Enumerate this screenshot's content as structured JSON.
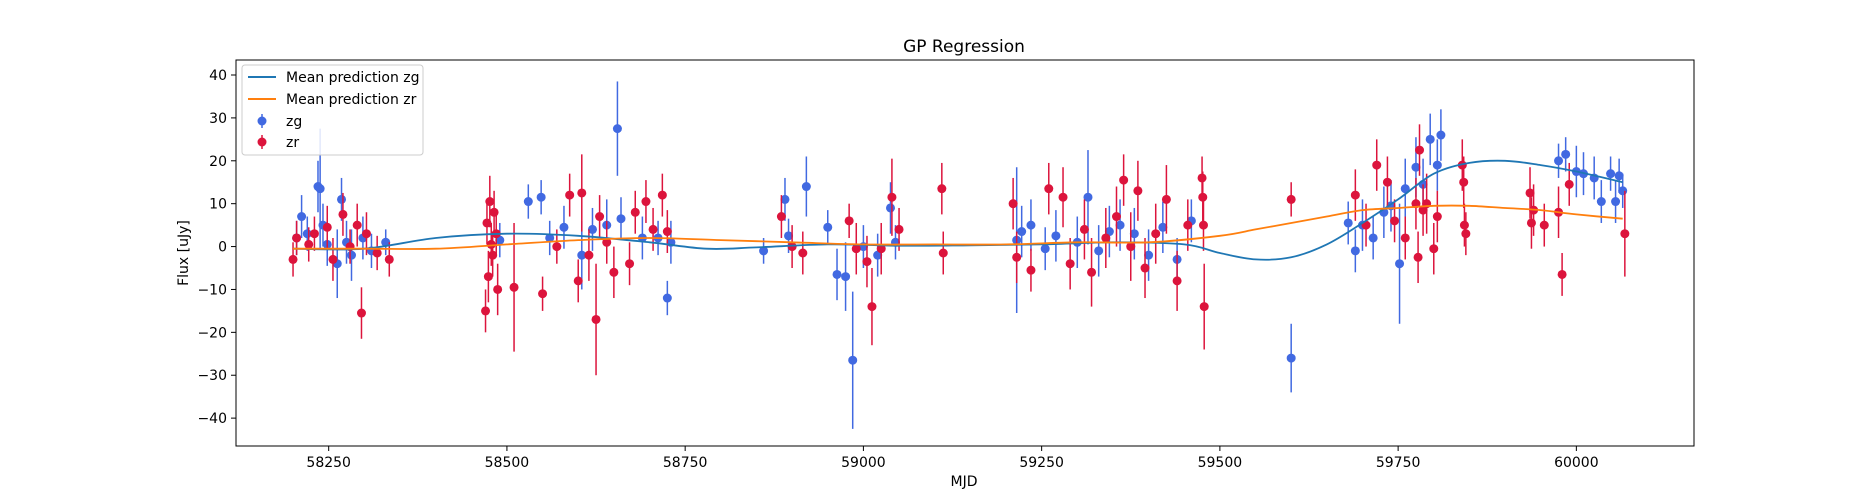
{
  "chart_data": {
    "type": "scatter",
    "title": "GP Regression",
    "xlabel": "MJD",
    "ylabel": "Flux [uJy]",
    "xlim": [
      58120,
      60165
    ],
    "ylim": [
      -46.5,
      43.5
    ],
    "xticks": [
      58250,
      58500,
      58750,
      59000,
      59250,
      59500,
      59750,
      60000
    ],
    "yticks": [
      -40,
      -30,
      -20,
      -10,
      0,
      10,
      20,
      30,
      40
    ],
    "grid": false,
    "legend_position": "top-left",
    "legend": [
      {
        "label": "Mean prediction zg",
        "kind": "line",
        "color": "#1f77b4"
      },
      {
        "label": "Mean prediction zr",
        "kind": "line",
        "color": "#ff7f0e"
      },
      {
        "label": "zg",
        "kind": "errorbar",
        "color": "#4169e1"
      },
      {
        "label": "zr",
        "kind": "errorbar",
        "color": "#dc143c"
      }
    ],
    "lines": [
      {
        "name": "Mean prediction zg",
        "color": "#1f77b4",
        "x": [
          58200,
          58300,
          58400,
          58500,
          58600,
          58700,
          58780,
          58850,
          58950,
          59050,
          59150,
          59250,
          59350,
          59450,
          59500,
          59550,
          59600,
          59650,
          59700,
          59750,
          59800,
          59850,
          59900,
          59950,
          60000,
          60065
        ],
        "y": [
          -0.5,
          -0.5,
          2,
          3,
          2.5,
          1,
          -0.5,
          -0.2,
          0.5,
          0.2,
          0.3,
          0.5,
          1,
          0.5,
          -1.5,
          -3,
          -2.5,
          0.5,
          5.5,
          11,
          17,
          19.5,
          20,
          19,
          17.5,
          15
        ]
      },
      {
        "name": "Mean prediction zr",
        "color": "#ff7f0e",
        "x": [
          58200,
          58300,
          58400,
          58500,
          58600,
          58700,
          58800,
          58900,
          59000,
          59100,
          59200,
          59300,
          59400,
          59500,
          59550,
          59600,
          59650,
          59700,
          59750,
          59800,
          59850,
          59900,
          59950,
          60000,
          60065
        ],
        "y": [
          -0.5,
          -0.5,
          -0.5,
          0.5,
          1.5,
          2,
          1.5,
          1,
          0.5,
          0.5,
          0.5,
          1,
          1,
          2.5,
          4,
          5.5,
          7,
          8.5,
          9,
          9.5,
          9.5,
          9,
          8.5,
          7.5,
          6.5
        ]
      }
    ],
    "series": [
      {
        "name": "zg",
        "color": "#4169e1",
        "points": [
          {
            "x": 58205,
            "y": 2,
            "err": 4
          },
          {
            "x": 58212,
            "y": 7,
            "err": 5
          },
          {
            "x": 58220,
            "y": 3,
            "err": 4
          },
          {
            "x": 58235,
            "y": 14,
            "err": 6
          },
          {
            "x": 58238,
            "y": 13.5,
            "err": 14
          },
          {
            "x": 58242,
            "y": 5,
            "err": 5
          },
          {
            "x": 58248,
            "y": 0.5,
            "err": 5
          },
          {
            "x": 58262,
            "y": -4,
            "err": 8
          },
          {
            "x": 58268,
            "y": 11,
            "err": 5
          },
          {
            "x": 58275,
            "y": 1,
            "err": 5
          },
          {
            "x": 58282,
            "y": -2,
            "err": 6
          },
          {
            "x": 58298,
            "y": 2,
            "err": 5
          },
          {
            "x": 58310,
            "y": -1,
            "err": 4
          },
          {
            "x": 58330,
            "y": 1,
            "err": 3
          },
          {
            "x": 58490,
            "y": 1.5,
            "err": 4
          },
          {
            "x": 58530,
            "y": 10.5,
            "err": 4
          },
          {
            "x": 58548,
            "y": 11.5,
            "err": 4
          },
          {
            "x": 58560,
            "y": 2,
            "err": 4
          },
          {
            "x": 58580,
            "y": 4.5,
            "err": 5
          },
          {
            "x": 58605,
            "y": -2,
            "err": 8
          },
          {
            "x": 58620,
            "y": 4,
            "err": 5
          },
          {
            "x": 58640,
            "y": 5,
            "err": 6
          },
          {
            "x": 58655,
            "y": 27.5,
            "err": 11
          },
          {
            "x": 58660,
            "y": 6.5,
            "err": 5
          },
          {
            "x": 58690,
            "y": 2,
            "err": 5
          },
          {
            "x": 58712,
            "y": 2,
            "err": 4
          },
          {
            "x": 58725,
            "y": -12,
            "err": 4
          },
          {
            "x": 58730,
            "y": 1,
            "err": 5
          },
          {
            "x": 58860,
            "y": -1,
            "err": 3
          },
          {
            "x": 58890,
            "y": 11,
            "err": 5
          },
          {
            "x": 58895,
            "y": 2.5,
            "err": 4
          },
          {
            "x": 58920,
            "y": 14,
            "err": 7
          },
          {
            "x": 58950,
            "y": 4.5,
            "err": 4
          },
          {
            "x": 58963,
            "y": -6.5,
            "err": 6
          },
          {
            "x": 58975,
            "y": -7,
            "err": 8
          },
          {
            "x": 58985,
            "y": -26.5,
            "err": 16
          },
          {
            "x": 59000,
            "y": 0,
            "err": 5
          },
          {
            "x": 59020,
            "y": -2,
            "err": 5
          },
          {
            "x": 59038,
            "y": 9,
            "err": 6
          },
          {
            "x": 59045,
            "y": 1,
            "err": 4
          },
          {
            "x": 59215,
            "y": 1.5,
            "err": 17
          },
          {
            "x": 59222,
            "y": 3.5,
            "err": 6
          },
          {
            "x": 59235,
            "y": 5,
            "err": 6
          },
          {
            "x": 59255,
            "y": -0.5,
            "err": 5
          },
          {
            "x": 59270,
            "y": 2.5,
            "err": 6
          },
          {
            "x": 59300,
            "y": 1,
            "err": 6
          },
          {
            "x": 59315,
            "y": 11.5,
            "err": 11
          },
          {
            "x": 59330,
            "y": -1,
            "err": 6
          },
          {
            "x": 59345,
            "y": 3.5,
            "err": 6
          },
          {
            "x": 59360,
            "y": 5,
            "err": 6
          },
          {
            "x": 59380,
            "y": 3,
            "err": 6
          },
          {
            "x": 59400,
            "y": -2,
            "err": 6
          },
          {
            "x": 59420,
            "y": 4.5,
            "err": 6
          },
          {
            "x": 59440,
            "y": -3,
            "err": 5
          },
          {
            "x": 59460,
            "y": 6,
            "err": 5
          },
          {
            "x": 59600,
            "y": -26,
            "err": 8
          },
          {
            "x": 59680,
            "y": 5.5,
            "err": 5
          },
          {
            "x": 59690,
            "y": -1,
            "err": 5
          },
          {
            "x": 59700,
            "y": 5,
            "err": 6
          },
          {
            "x": 59715,
            "y": 2,
            "err": 5
          },
          {
            "x": 59730,
            "y": 8,
            "err": 6
          },
          {
            "x": 59740,
            "y": 9.5,
            "err": 6
          },
          {
            "x": 59752,
            "y": -4,
            "err": 14
          },
          {
            "x": 59760,
            "y": 13.5,
            "err": 7
          },
          {
            "x": 59775,
            "y": 18.5,
            "err": 7
          },
          {
            "x": 59785,
            "y": 14.5,
            "err": 6
          },
          {
            "x": 59795,
            "y": 25,
            "err": 6
          },
          {
            "x": 59805,
            "y": 19,
            "err": 6
          },
          {
            "x": 59810,
            "y": 26,
            "err": 6
          },
          {
            "x": 59975,
            "y": 20,
            "err": 4
          },
          {
            "x": 59985,
            "y": 21.5,
            "err": 4
          },
          {
            "x": 60000,
            "y": 17.5,
            "err": 6
          },
          {
            "x": 60010,
            "y": 17,
            "err": 5
          },
          {
            "x": 60025,
            "y": 16,
            "err": 5
          },
          {
            "x": 60035,
            "y": 10.5,
            "err": 5
          },
          {
            "x": 60048,
            "y": 17,
            "err": 4
          },
          {
            "x": 60055,
            "y": 10.5,
            "err": 5
          },
          {
            "x": 60060,
            "y": 16.5,
            "err": 4
          },
          {
            "x": 60065,
            "y": 13,
            "err": 4
          }
        ]
      },
      {
        "name": "zr",
        "color": "#dc143c",
        "points": [
          {
            "x": 58200,
            "y": -3,
            "err": 4
          },
          {
            "x": 58205,
            "y": 2,
            "err": 4
          },
          {
            "x": 58222,
            "y": 0.5,
            "err": 4
          },
          {
            "x": 58230,
            "y": 3,
            "err": 4
          },
          {
            "x": 58248,
            "y": 4.5,
            "err": 5
          },
          {
            "x": 58256,
            "y": -3,
            "err": 5
          },
          {
            "x": 58270,
            "y": 7.5,
            "err": 5
          },
          {
            "x": 58280,
            "y": 0,
            "err": 4
          },
          {
            "x": 58290,
            "y": 5,
            "err": 5
          },
          {
            "x": 58296,
            "y": -15.5,
            "err": 6
          },
          {
            "x": 58303,
            "y": 3,
            "err": 5
          },
          {
            "x": 58318,
            "y": -1.5,
            "err": 4
          },
          {
            "x": 58335,
            "y": -3,
            "err": 4
          },
          {
            "x": 58470,
            "y": -15,
            "err": 5
          },
          {
            "x": 58472,
            "y": 5.5,
            "err": 5
          },
          {
            "x": 58474,
            "y": -7,
            "err": 6
          },
          {
            "x": 58476,
            "y": 10.5,
            "err": 6
          },
          {
            "x": 58478,
            "y": 0.5,
            "err": 5
          },
          {
            "x": 58480,
            "y": -2,
            "err": 5
          },
          {
            "x": 58482,
            "y": 8,
            "err": 5
          },
          {
            "x": 58485,
            "y": 3,
            "err": 5
          },
          {
            "x": 58487,
            "y": -10,
            "err": 6
          },
          {
            "x": 58510,
            "y": -9.5,
            "err": 15
          },
          {
            "x": 58550,
            "y": -11,
            "err": 4
          },
          {
            "x": 58570,
            "y": 0,
            "err": 4
          },
          {
            "x": 58588,
            "y": 12,
            "err": 5
          },
          {
            "x": 58600,
            "y": -8,
            "err": 5
          },
          {
            "x": 58605,
            "y": 12.5,
            "err": 9
          },
          {
            "x": 58615,
            "y": -2,
            "err": 6
          },
          {
            "x": 58625,
            "y": -17,
            "err": 13
          },
          {
            "x": 58630,
            "y": 7,
            "err": 5
          },
          {
            "x": 58640,
            "y": 1,
            "err": 5
          },
          {
            "x": 58650,
            "y": -6,
            "err": 6
          },
          {
            "x": 58672,
            "y": -4,
            "err": 5
          },
          {
            "x": 58680,
            "y": 8,
            "err": 5
          },
          {
            "x": 58695,
            "y": 10.5,
            "err": 5
          },
          {
            "x": 58705,
            "y": 4,
            "err": 5
          },
          {
            "x": 58718,
            "y": 12,
            "err": 5
          },
          {
            "x": 58725,
            "y": 3.5,
            "err": 5
          },
          {
            "x": 58885,
            "y": 7,
            "err": 5
          },
          {
            "x": 58900,
            "y": 0,
            "err": 5
          },
          {
            "x": 58915,
            "y": -1.5,
            "err": 5
          },
          {
            "x": 58980,
            "y": 6,
            "err": 4
          },
          {
            "x": 58990,
            "y": -0.5,
            "err": 6
          },
          {
            "x": 59005,
            "y": -3.5,
            "err": 6
          },
          {
            "x": 59012,
            "y": -14,
            "err": 9
          },
          {
            "x": 59025,
            "y": -0.5,
            "err": 6
          },
          {
            "x": 59040,
            "y": 11.5,
            "err": 9
          },
          {
            "x": 59050,
            "y": 4,
            "err": 5
          },
          {
            "x": 59110,
            "y": 13.5,
            "err": 6
          },
          {
            "x": 59112,
            "y": -1.5,
            "err": 5
          },
          {
            "x": 59210,
            "y": 10,
            "err": 6
          },
          {
            "x": 59215,
            "y": -2.5,
            "err": 6
          },
          {
            "x": 59235,
            "y": -5.5,
            "err": 5
          },
          {
            "x": 59260,
            "y": 13.5,
            "err": 6
          },
          {
            "x": 59280,
            "y": 11.5,
            "err": 7
          },
          {
            "x": 59290,
            "y": -4,
            "err": 6
          },
          {
            "x": 59310,
            "y": 4,
            "err": 7
          },
          {
            "x": 59320,
            "y": -6,
            "err": 8
          },
          {
            "x": 59340,
            "y": 2,
            "err": 7
          },
          {
            "x": 59355,
            "y": 7,
            "err": 7
          },
          {
            "x": 59365,
            "y": 15.5,
            "err": 6
          },
          {
            "x": 59375,
            "y": 0,
            "err": 8
          },
          {
            "x": 59385,
            "y": 13,
            "err": 7
          },
          {
            "x": 59395,
            "y": -5,
            "err": 7
          },
          {
            "x": 59410,
            "y": 3,
            "err": 7
          },
          {
            "x": 59425,
            "y": 11,
            "err": 8
          },
          {
            "x": 59440,
            "y": -8,
            "err": 7
          },
          {
            "x": 59455,
            "y": 5,
            "err": 6
          },
          {
            "x": 59475,
            "y": 16,
            "err": 5
          },
          {
            "x": 59476,
            "y": 11.5,
            "err": 6
          },
          {
            "x": 59477,
            "y": 5,
            "err": 6
          },
          {
            "x": 59478,
            "y": -14,
            "err": 10
          },
          {
            "x": 59600,
            "y": 11,
            "err": 4
          },
          {
            "x": 59690,
            "y": 12,
            "err": 6
          },
          {
            "x": 59705,
            "y": 5,
            "err": 5
          },
          {
            "x": 59720,
            "y": 19,
            "err": 6
          },
          {
            "x": 59735,
            "y": 15,
            "err": 6
          },
          {
            "x": 59745,
            "y": 6,
            "err": 5
          },
          {
            "x": 59760,
            "y": 2,
            "err": 5
          },
          {
            "x": 59775,
            "y": 10,
            "err": 6
          },
          {
            "x": 59778,
            "y": -2.5,
            "err": 6
          },
          {
            "x": 59780,
            "y": 22.5,
            "err": 6
          },
          {
            "x": 59785,
            "y": 8.5,
            "err": 6
          },
          {
            "x": 59790,
            "y": 10,
            "err": 7
          },
          {
            "x": 59800,
            "y": -0.5,
            "err": 6
          },
          {
            "x": 59805,
            "y": 7,
            "err": 6
          },
          {
            "x": 59840,
            "y": 19,
            "err": 6
          },
          {
            "x": 59842,
            "y": 15,
            "err": 6
          },
          {
            "x": 59843,
            "y": 5,
            "err": 5
          },
          {
            "x": 59845,
            "y": 3,
            "err": 5
          },
          {
            "x": 59935,
            "y": 12.5,
            "err": 6
          },
          {
            "x": 59937,
            "y": 5.5,
            "err": 6
          },
          {
            "x": 59940,
            "y": 8.5,
            "err": 6
          },
          {
            "x": 59955,
            "y": 5,
            "err": 5
          },
          {
            "x": 59975,
            "y": 8,
            "err": 6
          },
          {
            "x": 59980,
            "y": -6.5,
            "err": 5
          },
          {
            "x": 59990,
            "y": 14.5,
            "err": 5
          },
          {
            "x": 60068,
            "y": 3,
            "err": 10
          }
        ]
      }
    ]
  }
}
